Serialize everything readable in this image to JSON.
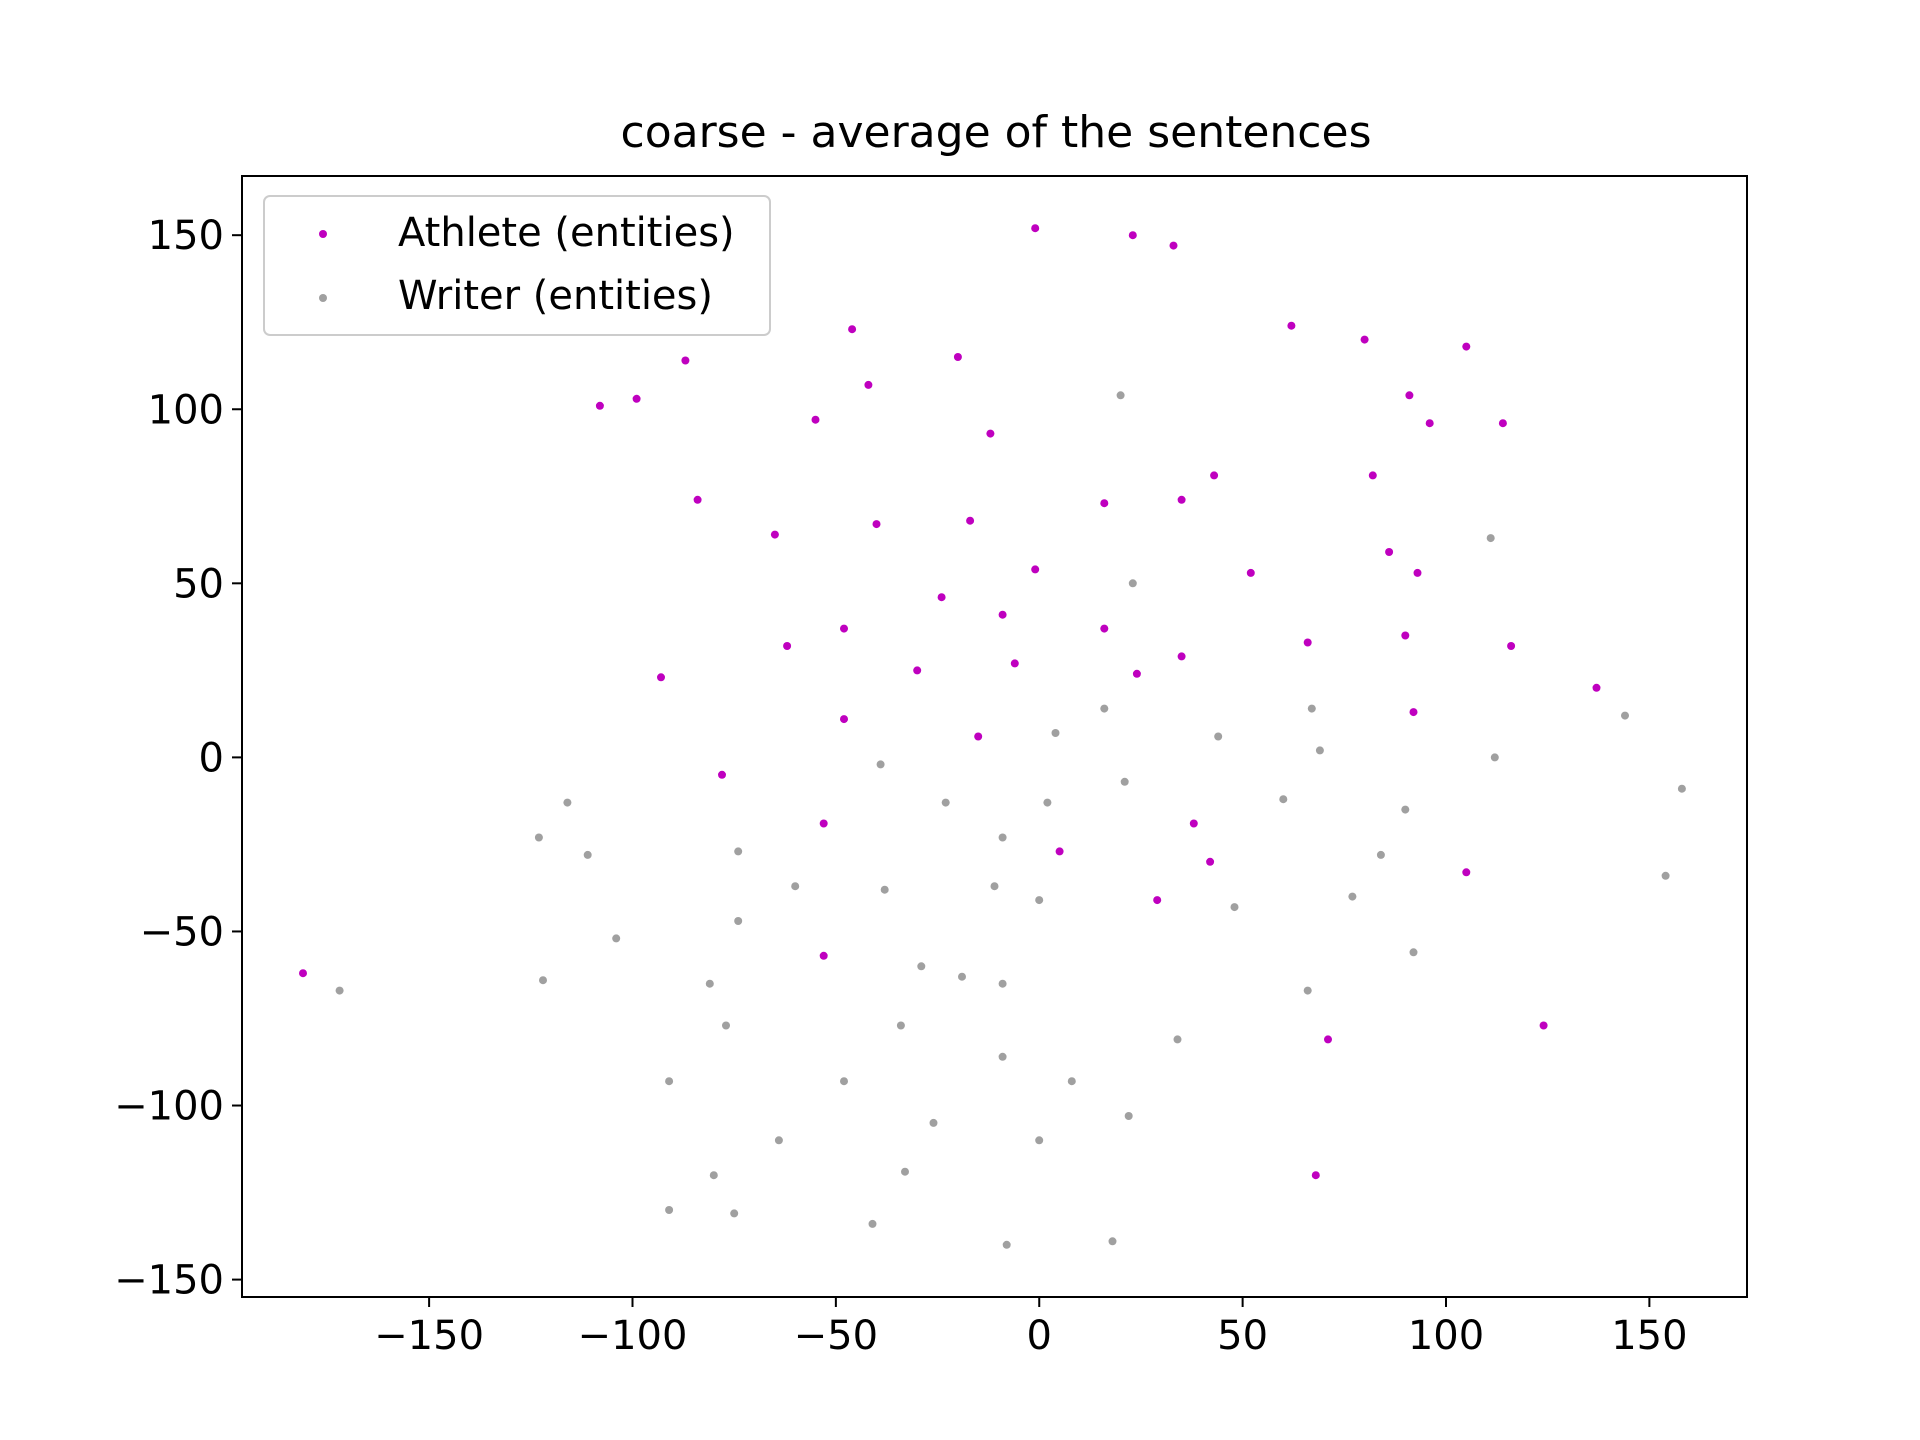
{
  "chart_data": {
    "type": "scatter",
    "title": "coarse - average of the sentences",
    "xlabel": "",
    "ylabel": "",
    "xlim": [
      -196,
      174
    ],
    "ylim": [
      -155,
      167
    ],
    "xticks": [
      -150,
      -100,
      -50,
      0,
      50,
      100,
      150
    ],
    "yticks": [
      -150,
      -100,
      -50,
      0,
      50,
      100,
      150
    ],
    "xtick_labels": [
      "−150",
      "−100",
      "−50",
      "0",
      "50",
      "100",
      "150"
    ],
    "ytick_labels": [
      "−150",
      "−100",
      "−50",
      "0",
      "50",
      "100",
      "150"
    ],
    "grid": false,
    "legend_position": "upper-left",
    "series": [
      {
        "name": "Athlete (entities)",
        "color": "#bf00bf",
        "points": [
          [
            -1,
            152
          ],
          [
            23,
            150
          ],
          [
            33,
            147
          ],
          [
            -46,
            123
          ],
          [
            62,
            124
          ],
          [
            80,
            120
          ],
          [
            105,
            118
          ],
          [
            -87,
            114
          ],
          [
            -20,
            115
          ],
          [
            -108,
            101
          ],
          [
            -99,
            103
          ],
          [
            -42,
            107
          ],
          [
            -55,
            97
          ],
          [
            -12,
            93
          ],
          [
            91,
            104
          ],
          [
            96,
            96
          ],
          [
            114,
            96
          ],
          [
            -84,
            74
          ],
          [
            -65,
            64
          ],
          [
            -40,
            67
          ],
          [
            -17,
            68
          ],
          [
            16,
            73
          ],
          [
            35,
            74
          ],
          [
            43,
            81
          ],
          [
            82,
            81
          ],
          [
            86,
            59
          ],
          [
            93,
            53
          ],
          [
            -1,
            54
          ],
          [
            52,
            53
          ],
          [
            -24,
            46
          ],
          [
            -48,
            37
          ],
          [
            -62,
            32
          ],
          [
            -9,
            41
          ],
          [
            16,
            37
          ],
          [
            35,
            29
          ],
          [
            66,
            33
          ],
          [
            90,
            35
          ],
          [
            116,
            32
          ],
          [
            -93,
            23
          ],
          [
            -30,
            25
          ],
          [
            -6,
            27
          ],
          [
            24,
            24
          ],
          [
            137,
            20
          ],
          [
            92,
            13
          ],
          [
            -48,
            11
          ],
          [
            -15,
            6
          ],
          [
            -78,
            -5
          ],
          [
            -53,
            -19
          ],
          [
            5,
            -27
          ],
          [
            38,
            -19
          ],
          [
            42,
            -30
          ],
          [
            105,
            -33
          ],
          [
            29,
            -41
          ],
          [
            -53,
            -57
          ],
          [
            -181,
            -62
          ],
          [
            124,
            -77
          ],
          [
            71,
            -81
          ],
          [
            68,
            -120
          ]
        ]
      },
      {
        "name": "Writer (entities)",
        "color": "#a0a0a0",
        "points": [
          [
            20,
            104
          ],
          [
            111,
            63
          ],
          [
            23,
            50
          ],
          [
            16,
            14
          ],
          [
            67,
            14
          ],
          [
            144,
            12
          ],
          [
            4,
            7
          ],
          [
            44,
            6
          ],
          [
            69,
            2
          ],
          [
            112,
            0
          ],
          [
            -39,
            -2
          ],
          [
            21,
            -7
          ],
          [
            -116,
            -13
          ],
          [
            -23,
            -13
          ],
          [
            2,
            -13
          ],
          [
            60,
            -12
          ],
          [
            90,
            -15
          ],
          [
            158,
            -9
          ],
          [
            -123,
            -23
          ],
          [
            -111,
            -28
          ],
          [
            -74,
            -27
          ],
          [
            -9,
            -23
          ],
          [
            84,
            -28
          ],
          [
            -60,
            -37
          ],
          [
            -38,
            -38
          ],
          [
            -11,
            -37
          ],
          [
            0,
            -41
          ],
          [
            48,
            -43
          ],
          [
            77,
            -40
          ],
          [
            154,
            -34
          ],
          [
            -74,
            -47
          ],
          [
            -104,
            -52
          ],
          [
            92,
            -56
          ],
          [
            -29,
            -60
          ],
          [
            -19,
            -63
          ],
          [
            -9,
            -65
          ],
          [
            -122,
            -64
          ],
          [
            -81,
            -65
          ],
          [
            66,
            -67
          ],
          [
            -172,
            -67
          ],
          [
            -77,
            -77
          ],
          [
            -34,
            -77
          ],
          [
            34,
            -81
          ],
          [
            -9,
            -86
          ],
          [
            -91,
            -93
          ],
          [
            -48,
            -93
          ],
          [
            8,
            -93
          ],
          [
            22,
            -103
          ],
          [
            -26,
            -105
          ],
          [
            -64,
            -110
          ],
          [
            0,
            -110
          ],
          [
            -33,
            -119
          ],
          [
            -80,
            -120
          ],
          [
            -91,
            -130
          ],
          [
            -75,
            -131
          ],
          [
            -41,
            -134
          ],
          [
            -8,
            -140
          ],
          [
            18,
            -139
          ]
        ]
      }
    ]
  }
}
